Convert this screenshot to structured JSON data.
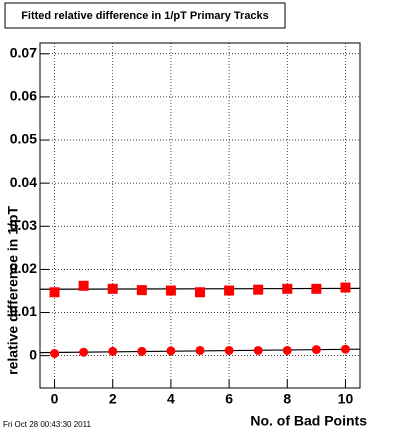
{
  "chart_data": {
    "type": "scatter",
    "title": "Fitted relative difference in 1/pT Primary Tracks",
    "x_label": "No. of Bad Points",
    "y_label": "relative difference in 1/pT",
    "timestamp": "Fri Oct 28 00:43:30 2011",
    "x": [
      0,
      1,
      2,
      3,
      4,
      5,
      6,
      7,
      8,
      9,
      10
    ],
    "series": [
      {
        "marker": "square",
        "color": "#ff0000",
        "values": [
          0.0147,
          0.0162,
          0.0155,
          0.0152,
          0.0151,
          0.0147,
          0.0151,
          0.0153,
          0.0155,
          0.0155,
          0.0158
        ]
      },
      {
        "marker": "circle",
        "color": "#ff0000",
        "values": [
          0.0005,
          0.0008,
          0.001,
          0.001,
          0.0011,
          0.0012,
          0.0012,
          0.0012,
          0.0012,
          0.0014,
          0.0015
        ]
      }
    ],
    "fits": [
      {
        "x": [
          -0.5,
          10.5
        ],
        "values": [
          0.0154,
          0.0156
        ],
        "color": "#000000"
      },
      {
        "x": [
          -0.5,
          10.5
        ],
        "values": [
          0.0007,
          0.0015
        ],
        "color": "#000000"
      }
    ],
    "xlim": [
      -0.5,
      10.5
    ],
    "ylim": [
      -0.0075,
      0.0725
    ],
    "xticks": [
      0,
      2,
      4,
      6,
      8,
      10
    ],
    "yticks": [
      0,
      0.01,
      0.02,
      0.03,
      0.04,
      0.05,
      0.06,
      0.07
    ],
    "grid": true
  }
}
